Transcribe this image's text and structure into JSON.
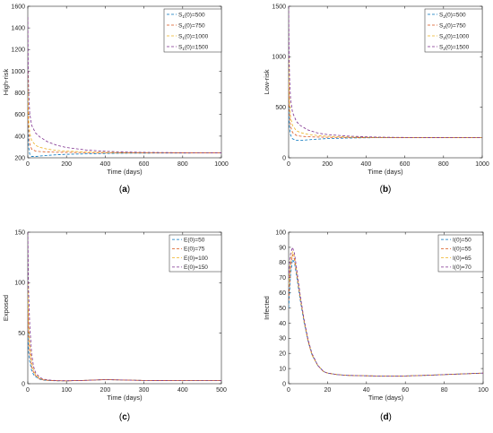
{
  "colors": [
    "#0072BD",
    "#D95319",
    "#EDB120",
    "#7E2F8E"
  ],
  "chart_data": [
    {
      "type": "line",
      "caption": "a",
      "xlabel": "Time (days)",
      "ylabel": "High-risk",
      "xlim": [
        0,
        1000
      ],
      "ylim": [
        200,
        1600
      ],
      "xticks": [
        "0",
        "200",
        "400",
        "600",
        "800",
        "1000"
      ],
      "yticks": [
        "200",
        "400",
        "600",
        "800",
        "1000",
        "1200",
        "1400",
        "1600"
      ],
      "legend_position": "top-right",
      "line_style": "dashed",
      "grid": false,
      "series": [
        {
          "name_main": "S",
          "name_sub": "1",
          "name_tail": "(0)=500",
          "x": [
            0,
            2,
            5,
            10,
            20,
            40,
            60,
            100,
            150,
            200,
            300,
            400,
            500,
            600,
            800,
            1000
          ],
          "y": [
            500,
            380,
            290,
            235,
            212,
            212,
            216,
            222,
            228,
            232,
            236,
            240,
            242,
            243,
            244,
            245
          ]
        },
        {
          "name_main": "S",
          "name_sub": "1",
          "name_tail": "(0)=750",
          "x": [
            0,
            2,
            5,
            10,
            20,
            40,
            60,
            100,
            150,
            200,
            300,
            400,
            500,
            600,
            800,
            1000
          ],
          "y": [
            750,
            560,
            420,
            330,
            280,
            262,
            258,
            254,
            251,
            250,
            248,
            247,
            246,
            246,
            245,
            245
          ]
        },
        {
          "name_main": "S",
          "name_sub": "1",
          "name_tail": "(0)=1000",
          "x": [
            0,
            2,
            5,
            10,
            20,
            40,
            60,
            100,
            150,
            200,
            300,
            400,
            500,
            600,
            800,
            1000
          ],
          "y": [
            1000,
            720,
            540,
            430,
            360,
            315,
            298,
            280,
            268,
            261,
            254,
            250,
            248,
            247,
            246,
            245
          ]
        },
        {
          "name_main": "S",
          "name_sub": "1",
          "name_tail": "(0)=1500",
          "x": [
            0,
            2,
            5,
            10,
            20,
            40,
            60,
            100,
            150,
            200,
            300,
            400,
            500,
            600,
            800,
            1000
          ],
          "y": [
            1500,
            1050,
            780,
            610,
            500,
            430,
            395,
            350,
            315,
            295,
            272,
            260,
            253,
            250,
            247,
            246
          ]
        }
      ]
    },
    {
      "type": "line",
      "caption": "b",
      "xlabel": "Time (days)",
      "ylabel": "Low-risk",
      "xlim": [
        0,
        1000
      ],
      "ylim": [
        0,
        1500
      ],
      "xticks": [
        "0",
        "200",
        "400",
        "600",
        "800",
        "1000"
      ],
      "yticks": [
        "0",
        "500",
        "1000",
        "1500"
      ],
      "legend_position": "top-right",
      "line_style": "dashed",
      "grid": false,
      "series": [
        {
          "name_main": "S",
          "name_sub": "2",
          "name_tail": "(0)=500",
          "x": [
            0,
            2,
            5,
            10,
            20,
            40,
            60,
            100,
            150,
            200,
            300,
            400,
            500,
            600,
            800,
            1000
          ],
          "y": [
            500,
            380,
            290,
            225,
            188,
            172,
            172,
            178,
            185,
            190,
            195,
            198,
            199,
            200,
            200,
            200
          ]
        },
        {
          "name_main": "S",
          "name_sub": "2",
          "name_tail": "(0)=750",
          "x": [
            0,
            2,
            5,
            10,
            20,
            40,
            60,
            100,
            150,
            200,
            300,
            400,
            500,
            600,
            800,
            1000
          ],
          "y": [
            750,
            560,
            420,
            310,
            250,
            222,
            214,
            208,
            205,
            203,
            201,
            200,
            200,
            200,
            200,
            200
          ]
        },
        {
          "name_main": "S",
          "name_sub": "2",
          "name_tail": "(0)=1000",
          "x": [
            0,
            2,
            5,
            10,
            20,
            40,
            60,
            100,
            150,
            200,
            300,
            400,
            500,
            600,
            800,
            1000
          ],
          "y": [
            1000,
            720,
            540,
            400,
            320,
            268,
            250,
            232,
            220,
            213,
            206,
            203,
            201,
            200,
            200,
            200
          ]
        },
        {
          "name_main": "S",
          "name_sub": "2",
          "name_tail": "(0)=1500",
          "x": [
            0,
            2,
            5,
            10,
            20,
            40,
            60,
            100,
            150,
            200,
            300,
            400,
            500,
            600,
            800,
            1000
          ],
          "y": [
            1500,
            1050,
            780,
            580,
            450,
            360,
            320,
            275,
            245,
            230,
            215,
            207,
            203,
            201,
            200,
            200
          ]
        }
      ]
    },
    {
      "type": "line",
      "caption": "c",
      "xlabel": "Time (days)",
      "ylabel": "Exposed",
      "xlim": [
        0,
        500
      ],
      "ylim": [
        0,
        150
      ],
      "xticks": [
        "0",
        "100",
        "200",
        "300",
        "400",
        "500"
      ],
      "yticks": [
        "0",
        "50",
        "100",
        "150"
      ],
      "legend_position": "top-right",
      "line_style": "dashed",
      "grid": false,
      "series": [
        {
          "name_main": "E(0)=50",
          "name_sub": "",
          "name_tail": "",
          "x": [
            0,
            2,
            5,
            10,
            15,
            20,
            30,
            40,
            60,
            80,
            100,
            150,
            200,
            250,
            300,
            400,
            500
          ],
          "y": [
            50,
            32,
            22,
            13,
            9,
            7,
            4.5,
            3.5,
            3,
            2.8,
            2.8,
            3.3,
            4,
            3.6,
            3.2,
            3.1,
            3.1
          ]
        },
        {
          "name_main": "E(0)=75",
          "name_sub": "",
          "name_tail": "",
          "x": [
            0,
            2,
            5,
            10,
            15,
            20,
            30,
            40,
            60,
            80,
            100,
            150,
            200,
            250,
            300,
            400,
            500
          ],
          "y": [
            75,
            48,
            31,
            17,
            11,
            8,
            5,
            3.7,
            3.1,
            2.9,
            2.8,
            3.3,
            4,
            3.6,
            3.2,
            3.1,
            3.1
          ]
        },
        {
          "name_main": "E(0)=100",
          "name_sub": "",
          "name_tail": "",
          "x": [
            0,
            2,
            5,
            10,
            15,
            20,
            30,
            40,
            60,
            80,
            100,
            150,
            200,
            250,
            300,
            400,
            500
          ],
          "y": [
            100,
            62,
            40,
            21,
            13,
            9,
            5.5,
            4,
            3.2,
            2.9,
            2.8,
            3.3,
            4,
            3.6,
            3.2,
            3.1,
            3.1
          ]
        },
        {
          "name_main": "E(0)=150",
          "name_sub": "",
          "name_tail": "",
          "x": [
            0,
            2,
            5,
            10,
            15,
            20,
            30,
            40,
            60,
            80,
            100,
            150,
            200,
            250,
            300,
            400,
            500
          ],
          "y": [
            150,
            92,
            58,
            29,
            17,
            11,
            6.5,
            4.5,
            3.4,
            3,
            2.9,
            3.3,
            4,
            3.6,
            3.2,
            3.1,
            3.1
          ]
        }
      ]
    },
    {
      "type": "line",
      "caption": "d",
      "xlabel": "Time (days)",
      "ylabel": "Infected",
      "xlim": [
        0,
        100
      ],
      "ylim": [
        0,
        100
      ],
      "xticks": [
        "0",
        "20",
        "40",
        "60",
        "80",
        "100"
      ],
      "yticks": [
        "0",
        "10",
        "20",
        "30",
        "40",
        "50",
        "60",
        "70",
        "80",
        "90",
        "100"
      ],
      "legend_position": "top-right",
      "line_style": "dashed",
      "grid": false,
      "series": [
        {
          "name_main": "I(0)=50",
          "name_sub": "",
          "name_tail": "",
          "x": [
            0,
            1,
            2,
            3,
            4,
            6,
            8,
            10,
            12,
            15,
            18,
            20,
            25,
            30,
            40,
            50,
            60,
            70,
            80,
            90,
            100
          ],
          "y": [
            50,
            72,
            82,
            80,
            72,
            55,
            40,
            28,
            19,
            12,
            8,
            7,
            6,
            5.5,
            5.2,
            5,
            5.1,
            5.5,
            6,
            6.5,
            7
          ]
        },
        {
          "name_main": "I(0)=55",
          "name_sub": "",
          "name_tail": "",
          "x": [
            0,
            1,
            2,
            3,
            4,
            6,
            8,
            10,
            12,
            15,
            18,
            20,
            25,
            30,
            40,
            50,
            60,
            70,
            80,
            90,
            100
          ],
          "y": [
            55,
            77,
            85,
            82,
            74,
            56,
            41,
            28,
            19,
            12,
            8,
            7,
            6,
            5.5,
            5.2,
            5,
            5.1,
            5.5,
            6,
            6.5,
            7
          ]
        },
        {
          "name_main": "I(0)=65",
          "name_sub": "",
          "name_tail": "",
          "x": [
            0,
            1,
            2,
            3,
            4,
            6,
            8,
            10,
            12,
            15,
            18,
            20,
            25,
            30,
            40,
            50,
            60,
            70,
            80,
            90,
            100
          ],
          "y": [
            65,
            82,
            87,
            84,
            75,
            57,
            41,
            29,
            19,
            12,
            8,
            7,
            6,
            5.5,
            5.2,
            5,
            5.1,
            5.5,
            6,
            6.5,
            7
          ]
        },
        {
          "name_main": "I(0)=70",
          "name_sub": "",
          "name_tail": "",
          "x": [
            0,
            1,
            2,
            3,
            4,
            6,
            8,
            10,
            12,
            15,
            18,
            20,
            25,
            30,
            40,
            50,
            60,
            70,
            80,
            90,
            100
          ],
          "y": [
            70,
            86,
            90,
            86,
            77,
            58,
            42,
            29,
            20,
            12,
            8,
            7,
            6,
            5.5,
            5.2,
            5,
            5.1,
            5.5,
            6,
            6.5,
            7
          ]
        }
      ]
    }
  ]
}
